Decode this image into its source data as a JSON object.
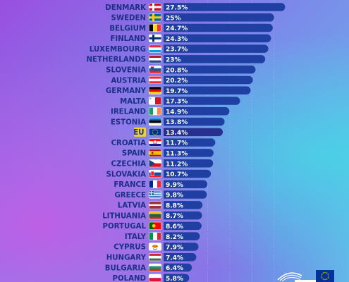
{
  "colors": {
    "bar": "#1f3fa3",
    "bar_highlight": "#27308f",
    "label_text": "#1b2f86",
    "value_text": "#ffffff",
    "eu_label_bg": "#f5cf2f",
    "eu_flag_blue": "#003399",
    "eu_star": "#ffcc00"
  },
  "chart_data": {
    "type": "bar",
    "orientation": "horizontal",
    "value_suffix": "%",
    "highlight_category": "EU",
    "xlim": [
      0,
      30
    ],
    "categories": [
      "DENMARK",
      "SWEDEN",
      "BELGIUM",
      "FINLAND",
      "LUXEMBOURG",
      "NETHERLANDS",
      "SLOVENIA",
      "AUSTRIA",
      "GERMANY",
      "MALTA",
      "IRELAND",
      "ESTONIA",
      "EU",
      "CROATIA",
      "SPAIN",
      "CZECHIA",
      "SLOVAKIA",
      "FRANCE",
      "GREECE",
      "LATVIA",
      "LITHUANIA",
      "PORTUGAL",
      "ITALY",
      "CYPRUS",
      "HUNGARY",
      "BULGARIA",
      "POLAND"
    ],
    "values": [
      27.5,
      25,
      24.7,
      24.3,
      23.7,
      23,
      20.8,
      20.2,
      19.7,
      17.3,
      14.9,
      13.8,
      13.4,
      11.7,
      11.3,
      11.2,
      10.7,
      9.9,
      9.8,
      8.8,
      8.7,
      8.6,
      8.2,
      7.9,
      7.4,
      6.4,
      5.8
    ],
    "value_labels": [
      "27.5%",
      "25%",
      "24.7%",
      "24.3%",
      "23.7%",
      "23%",
      "20.8%",
      "20.2%",
      "19.7%",
      "17.3%",
      "14.9%",
      "13.8%",
      "13.4%",
      "11.7%",
      "11.3%",
      "11.2%",
      "10.7%",
      "9.9%",
      "9.8%",
      "8.8%",
      "8.7%",
      "8.6%",
      "8.2%",
      "7.9%",
      "7.4%",
      "6.4%",
      "5.8%"
    ],
    "flags": [
      "DK",
      "SE",
      "BE",
      "FI",
      "LU",
      "NL",
      "SI",
      "AT",
      "DE",
      "MT",
      "IE",
      "EE",
      "EU",
      "HR",
      "ES",
      "CZ",
      "SK",
      "FR",
      "GR",
      "LV",
      "LT",
      "PT",
      "IT",
      "CY",
      "HU",
      "BG",
      "PL"
    ]
  }
}
